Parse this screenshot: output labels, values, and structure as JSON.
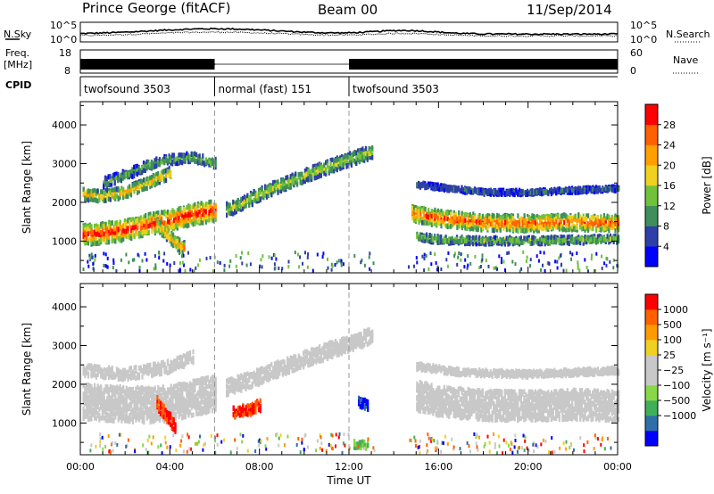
{
  "header": {
    "radar": "Prince George (fitACF)",
    "beam": "Beam 00",
    "date": "11/Sep/2014"
  },
  "noise_panel": {
    "left_label": "N.Sky",
    "right_label": "N.Search",
    "left_ticks": [
      "10^5",
      "10^0"
    ],
    "right_ticks": [
      "10^5",
      "10^0"
    ]
  },
  "freq_panel": {
    "left_label_line1": "Freq.",
    "left_label_line2": "[MHz]",
    "left_ticks": [
      "18",
      "8"
    ],
    "right_label": "Nave",
    "right_ticks": [
      "60",
      "0"
    ]
  },
  "cpid_panel": {
    "label": "CPID",
    "segments": [
      {
        "start_hour": 0,
        "end_hour": 6,
        "text": "twofsound 3503"
      },
      {
        "start_hour": 6,
        "end_hour": 12,
        "text": "normal (fast) 151"
      },
      {
        "start_hour": 12,
        "end_hour": 24,
        "text": "twofsound 3503"
      }
    ]
  },
  "time_axis": {
    "label": "Time UT",
    "ticks": [
      {
        "hour": 0,
        "label": "00:00"
      },
      {
        "hour": 4,
        "label": "04:00"
      },
      {
        "hour": 8,
        "label": "08:00"
      },
      {
        "hour": 12,
        "label": "12:00"
      },
      {
        "hour": 16,
        "label": "16:00"
      },
      {
        "hour": 20,
        "label": "20:00"
      },
      {
        "hour": 24,
        "label": "00:00"
      }
    ]
  },
  "colors": {
    "power": [
      "#0000ff",
      "#2e3fa8",
      "#3f8f5a",
      "#6fc23a",
      "#f0d020",
      "#ffa000",
      "#ff6000",
      "#ff0000"
    ],
    "velocity": [
      "#ff0000",
      "#ff6000",
      "#ff9a00",
      "#f0d020",
      "#c8c8c8",
      "#c8c8c8",
      "#88d848",
      "#3faf5a",
      "#2e6fa8",
      "#0000ff"
    ],
    "ground_scatter": "#c8c8c8"
  },
  "chart_data": [
    {
      "type": "heatmap",
      "title": "Power",
      "xlabel": "",
      "ylabel": "Slant Range [km]",
      "xlim": [
        0,
        24
      ],
      "ylim": [
        180,
        4600
      ],
      "yticks": [
        "1000",
        "2000",
        "3000",
        "4000"
      ],
      "colorbar": {
        "label": "Power [dB]",
        "ticks": [
          "4",
          "8",
          "12",
          "16",
          "20",
          "24",
          "28"
        ],
        "range": [
          0,
          32
        ]
      },
      "bands": [
        {
          "t": [
            0.1,
            1.0,
            2.0,
            3.0,
            4.0,
            5.0,
            6.0
          ],
          "r": [
            1150,
            1200,
            1280,
            1420,
            1530,
            1680,
            1780
          ],
          "width": 260,
          "peak": 28
        },
        {
          "t": [
            0.1,
            1.0,
            2.0,
            3.0,
            4.0
          ],
          "r": [
            2200,
            2150,
            2250,
            2500,
            2750
          ],
          "width": 140,
          "peak": 20
        },
        {
          "t": [
            1.0,
            2.0,
            3.0,
            4.0,
            5.0,
            6.0
          ],
          "r": [
            2500,
            2700,
            2950,
            3100,
            3150,
            3000
          ],
          "width": 120,
          "peak": 12
        },
        {
          "t": [
            6.5,
            7.0,
            8.0,
            9.0,
            10.0,
            11.0,
            12.0,
            13.0
          ],
          "r": [
            1800,
            1900,
            2200,
            2450,
            2680,
            2900,
            3100,
            3300
          ],
          "width": 160,
          "peak": 16
        },
        {
          "t": [
            3.4,
            3.8,
            4.2,
            4.6
          ],
          "r": [
            1400,
            1200,
            950,
            800
          ],
          "width": 160,
          "peak": 22
        },
        {
          "t": [
            14.8,
            16.0,
            18.0,
            20.0,
            22.0,
            24.0
          ],
          "r": [
            1700,
            1580,
            1470,
            1450,
            1480,
            1450
          ],
          "width": 200,
          "peak": 26
        },
        {
          "t": [
            15.0,
            16.0,
            18.0,
            20.0,
            22.0,
            24.0
          ],
          "r": [
            1100,
            1030,
            1000,
            1000,
            1020,
            1050
          ],
          "width": 90,
          "peak": 14
        },
        {
          "t": [
            15.0,
            16.5,
            18.0,
            20.0,
            22.0,
            24.0
          ],
          "r": [
            2450,
            2350,
            2250,
            2250,
            2300,
            2350
          ],
          "width": 60,
          "peak": 8
        }
      ]
    },
    {
      "type": "heatmap",
      "title": "Velocity",
      "xlabel": "Time UT",
      "ylabel": "Slant Range [km]",
      "xlim": [
        0,
        24
      ],
      "ylim": [
        180,
        4600
      ],
      "yticks": [
        "1000",
        "2000",
        "3000",
        "4000"
      ],
      "colorbar": {
        "label": "Velocity [m s⁻¹]",
        "ticks": [
          "1000",
          "500",
          "100",
          "25",
          "−25",
          "−100",
          "−500",
          "−1000"
        ]
      },
      "bands": [
        {
          "t": [
            0.1,
            1.0,
            2.0,
            3.0,
            4.0,
            5.0,
            6.0
          ],
          "r": [
            1550,
            1500,
            1480,
            1450,
            1500,
            1650,
            1750
          ],
          "width": 450,
          "kind": "ground"
        },
        {
          "t": [
            0.1,
            2.0,
            4.0,
            5.0
          ],
          "r": [
            2350,
            2250,
            2450,
            2700
          ],
          "width": 150,
          "kind": "ground"
        },
        {
          "t": [
            6.5,
            8.0,
            10.0,
            12.0,
            13.0
          ],
          "r": [
            1900,
            2200,
            2650,
            3050,
            3250
          ],
          "width": 200,
          "kind": "ground"
        },
        {
          "t": [
            15.0,
            16.0,
            18.0,
            20.0,
            22.0,
            24.0
          ],
          "r": [
            1700,
            1550,
            1450,
            1430,
            1470,
            1430
          ],
          "width": 380,
          "kind": "ground"
        },
        {
          "t": [
            15.0,
            17.0,
            20.0,
            24.0
          ],
          "r": [
            2450,
            2300,
            2250,
            2350
          ],
          "width": 80,
          "kind": "ground"
        },
        {
          "t": [
            6.8,
            7.2,
            7.6,
            8.0
          ],
          "r": [
            1250,
            1300,
            1350,
            1450
          ],
          "width": 140,
          "kind": "red"
        },
        {
          "t": [
            3.4,
            3.8,
            4.2
          ],
          "r": [
            1500,
            1200,
            900
          ],
          "width": 160,
          "kind": "red"
        },
        {
          "t": [
            12.4,
            12.8
          ],
          "r": [
            1550,
            1450
          ],
          "width": 120,
          "kind": "blue"
        },
        {
          "t": [
            12.2,
            12.8
          ],
          "r": [
            450,
            420
          ],
          "width": 100,
          "kind": "green"
        }
      ]
    }
  ]
}
